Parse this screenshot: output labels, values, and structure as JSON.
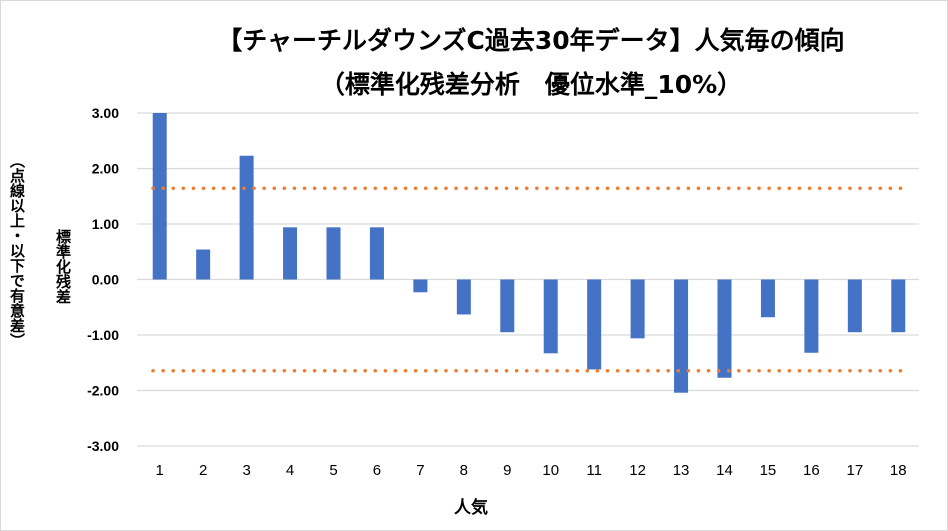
{
  "chart_data": {
    "type": "bar",
    "title": "【チャーチルダウンズC過去30年データ】人気毎の傾向",
    "subtitle": "（標準化残差分析　優位水準_10%）",
    "xlabel": "人気",
    "ylabel": "標準化残差",
    "ylabel2": "（点線以上・以下で有意差）",
    "ylim": [
      -3,
      3
    ],
    "yticks": [
      "3.00",
      "2.00",
      "1.00",
      "0.00",
      "-1.00",
      "-2.00",
      "-3.00"
    ],
    "ytick_values": [
      3,
      2,
      1,
      0,
      -1,
      -2,
      -3
    ],
    "categories": [
      "1",
      "2",
      "3",
      "4",
      "5",
      "6",
      "7",
      "8",
      "9",
      "10",
      "11",
      "12",
      "13",
      "14",
      "15",
      "16",
      "17",
      "18"
    ],
    "values": [
      3.0,
      0.54,
      2.23,
      0.94,
      0.94,
      0.94,
      -0.23,
      -0.63,
      -0.95,
      -1.33,
      -1.62,
      -1.06,
      -2.04,
      -1.77,
      -0.68,
      -1.32,
      -0.95,
      -0.95
    ],
    "thresholds": [
      1.645,
      -1.645
    ],
    "grid": true,
    "colors": {
      "bar": "#4472C4",
      "threshold": "#ED7D31",
      "grid": "#d9d9d9"
    }
  }
}
